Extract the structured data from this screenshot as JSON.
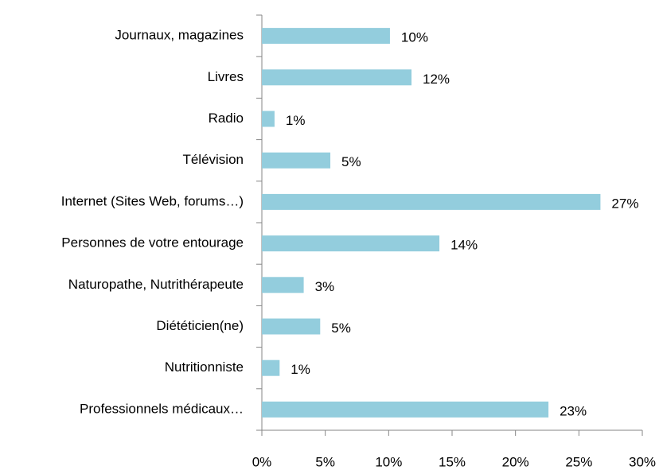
{
  "chart_data": {
    "type": "bar",
    "orientation": "horizontal",
    "categories": [
      "Journaux, magazines",
      "Livres",
      "Radio",
      "Télévision",
      "Internet (Sites Web, forums…)",
      "Personnes de votre entourage",
      "Naturopathe, Nutrithérapeute",
      "Diététicien(ne)",
      "Nutritionniste",
      "Professionnels médicaux…"
    ],
    "values": [
      10.1,
      11.8,
      1.0,
      5.4,
      26.7,
      14.0,
      3.3,
      4.6,
      1.4,
      22.6
    ],
    "value_labels": [
      "10%",
      "12%",
      "1%",
      "5%",
      "27%",
      "14%",
      "3%",
      "5%",
      "1%",
      "23%"
    ],
    "color": "#93cddd",
    "xlim": [
      0,
      30
    ],
    "xticks": [
      {
        "value": 0,
        "label": "0%"
      },
      {
        "value": 5,
        "label": "5%"
      },
      {
        "value": 10,
        "label": "10%"
      },
      {
        "value": 15,
        "label": "15%"
      },
      {
        "value": 20,
        "label": "20%"
      },
      {
        "value": 25,
        "label": "25%"
      },
      {
        "value": 30,
        "label": "30%"
      }
    ],
    "grid": false
  }
}
